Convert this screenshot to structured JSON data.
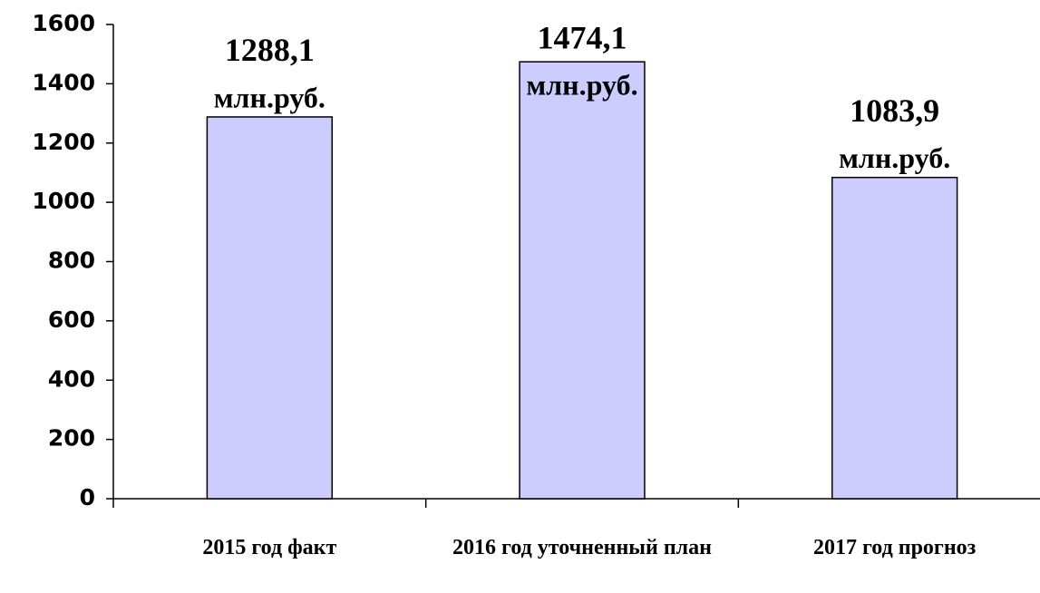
{
  "chart_data": {
    "type": "bar",
    "categories": [
      "2015 год факт",
      "2016 год уточненный план",
      "2017 год прогноз"
    ],
    "values": [
      1288.1,
      1474.1,
      1083.9
    ],
    "value_labels": [
      "1288,1",
      "1474,1",
      "1083,9"
    ],
    "value_unit": "млн.руб.",
    "color": "#ccccff",
    "ylim": [
      0,
      1600
    ],
    "yticks": [
      0,
      200,
      400,
      600,
      800,
      1000,
      1200,
      1400,
      1600
    ],
    "grid": false
  }
}
